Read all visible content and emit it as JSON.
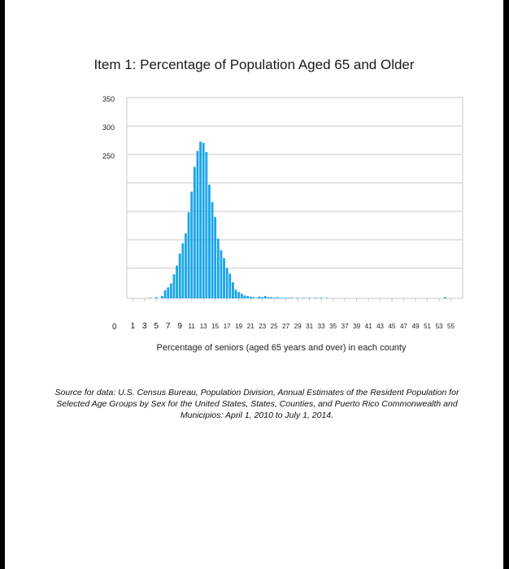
{
  "chart_data": {
    "type": "bar",
    "title": "Item 1: Percentage of Population Aged 65 and Older",
    "xlabel": "Percentage of seniors (aged 65 years and over) in each county",
    "ylabel": "",
    "y_tick_labels": [
      "350",
      "300",
      "250"
    ],
    "y_zero_label": "0",
    "x_tick_labels": [
      "1",
      "3",
      "5",
      "7",
      "9",
      "11",
      "13",
      "15",
      "17",
      "19",
      "21",
      "23",
      "25",
      "27",
      "29",
      "31",
      "33",
      "35",
      "37",
      "39",
      "41",
      "43",
      "45",
      "47",
      "49",
      "51",
      "53",
      "55"
    ],
    "xlim": [
      0,
      57
    ],
    "ylim": [
      0,
      350
    ],
    "grid": true,
    "bar_color": "#1aa6e8",
    "x": [
      4,
      5,
      6,
      6.5,
      7,
      7.5,
      8,
      8.5,
      9,
      9.5,
      10,
      10.5,
      11,
      11.5,
      12,
      12.5,
      13,
      13.5,
      14,
      14.5,
      15,
      15.5,
      16,
      16.5,
      17,
      17.5,
      18,
      18.5,
      19,
      19.5,
      20,
      20.5,
      21,
      21.5,
      22,
      22.5,
      23,
      23.5,
      24,
      24.5,
      25,
      25.5,
      26,
      26.5,
      27,
      27.5,
      28,
      29,
      30,
      31,
      32,
      33,
      34,
      54
    ],
    "values": [
      1,
      2,
      4,
      14,
      19,
      26,
      42,
      57,
      78,
      96,
      113,
      150,
      186,
      229,
      257,
      273,
      271,
      255,
      198,
      168,
      142,
      104,
      84,
      70,
      53,
      43,
      28,
      15,
      11,
      8,
      5,
      4,
      3,
      2,
      1,
      3,
      2,
      4,
      2,
      2,
      1,
      2,
      1,
      1,
      1,
      1,
      1,
      1,
      1,
      1,
      1,
      1,
      1,
      2
    ]
  },
  "source_text": "Source for data: U.S. Census Bureau, Population Division, Annual Estimates of the Resident Population for Selected Age Groups by Sex for the United States, States, Counties, and Puerto Rico Commonwealth and Municipios: April 1, 2010 to July 1, 2014."
}
